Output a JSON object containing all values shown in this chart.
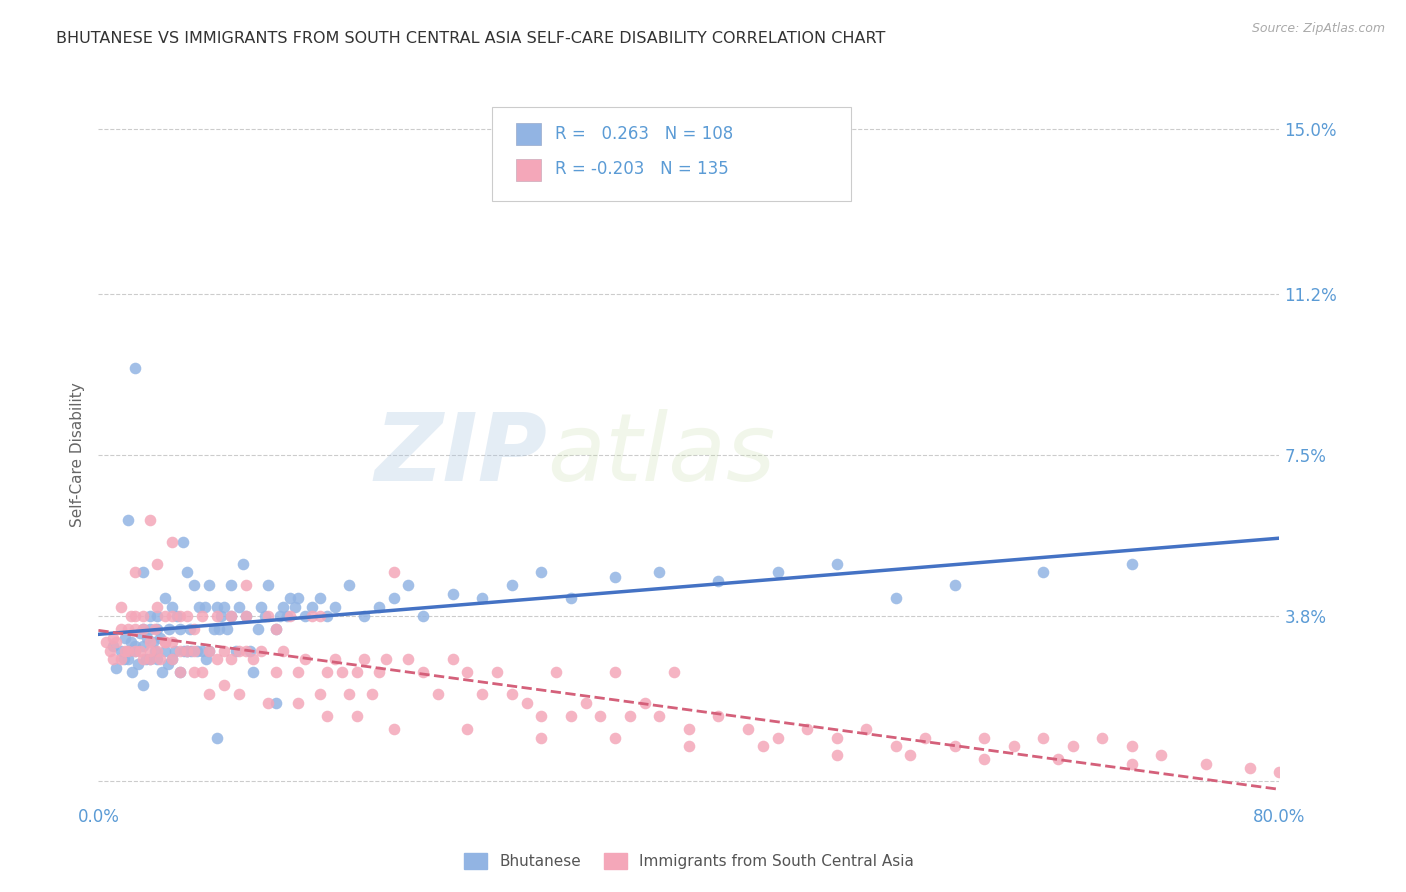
{
  "title": "BHUTANESE VS IMMIGRANTS FROM SOUTH CENTRAL ASIA SELF-CARE DISABILITY CORRELATION CHART",
  "source": "Source: ZipAtlas.com",
  "ylabel": "Self-Care Disability",
  "xlim": [
    0.0,
    0.8
  ],
  "ylim": [
    -0.005,
    0.155
  ],
  "yticks": [
    0.0,
    0.038,
    0.075,
    0.112,
    0.15
  ],
  "ytick_labels": [
    "",
    "3.8%",
    "7.5%",
    "11.2%",
    "15.0%"
  ],
  "xticks": [
    0.0,
    0.8
  ],
  "xtick_labels": [
    "0.0%",
    "80.0%"
  ],
  "blue_color": "#92b4e3",
  "blue_dark": "#4472c4",
  "pink_color": "#f4a7b9",
  "pink_dark": "#d4607a",
  "blue_R": "0.263",
  "blue_N": "108",
  "pink_R": "-0.203",
  "pink_N": "135",
  "watermark_zip": "ZIP",
  "watermark_atlas": "atlas",
  "legend1_label": "Bhutanese",
  "legend2_label": "Immigrants from South Central Asia",
  "blue_scatter_x": [
    0.01,
    0.012,
    0.015,
    0.017,
    0.018,
    0.02,
    0.02,
    0.022,
    0.023,
    0.025,
    0.025,
    0.027,
    0.028,
    0.03,
    0.03,
    0.03,
    0.032,
    0.033,
    0.035,
    0.035,
    0.037,
    0.038,
    0.04,
    0.04,
    0.042,
    0.043,
    0.045,
    0.045,
    0.047,
    0.048,
    0.05,
    0.05,
    0.052,
    0.053,
    0.055,
    0.055,
    0.057,
    0.058,
    0.06,
    0.06,
    0.062,
    0.063,
    0.065,
    0.067,
    0.068,
    0.07,
    0.072,
    0.073,
    0.075,
    0.075,
    0.078,
    0.08,
    0.082,
    0.083,
    0.085,
    0.087,
    0.09,
    0.09,
    0.093,
    0.095,
    0.098,
    0.1,
    0.103,
    0.105,
    0.108,
    0.11,
    0.113,
    0.115,
    0.12,
    0.123,
    0.125,
    0.128,
    0.13,
    0.133,
    0.135,
    0.14,
    0.145,
    0.15,
    0.155,
    0.16,
    0.17,
    0.18,
    0.19,
    0.2,
    0.21,
    0.22,
    0.24,
    0.26,
    0.28,
    0.3,
    0.32,
    0.35,
    0.38,
    0.42,
    0.46,
    0.5,
    0.54,
    0.58,
    0.64,
    0.7,
    0.02,
    0.025,
    0.03,
    0.035,
    0.04,
    0.06,
    0.08,
    0.12
  ],
  "blue_scatter_y": [
    0.031,
    0.026,
    0.03,
    0.028,
    0.033,
    0.03,
    0.028,
    0.032,
    0.025,
    0.031,
    0.03,
    0.027,
    0.034,
    0.031,
    0.035,
    0.022,
    0.028,
    0.033,
    0.038,
    0.028,
    0.032,
    0.03,
    0.038,
    0.028,
    0.033,
    0.025,
    0.03,
    0.042,
    0.027,
    0.035,
    0.028,
    0.04,
    0.03,
    0.038,
    0.025,
    0.035,
    0.055,
    0.03,
    0.03,
    0.048,
    0.035,
    0.03,
    0.045,
    0.03,
    0.04,
    0.03,
    0.04,
    0.028,
    0.03,
    0.045,
    0.035,
    0.04,
    0.035,
    0.038,
    0.04,
    0.035,
    0.038,
    0.045,
    0.03,
    0.04,
    0.05,
    0.038,
    0.03,
    0.025,
    0.035,
    0.04,
    0.038,
    0.045,
    0.035,
    0.038,
    0.04,
    0.038,
    0.042,
    0.04,
    0.042,
    0.038,
    0.04,
    0.042,
    0.038,
    0.04,
    0.045,
    0.038,
    0.04,
    0.042,
    0.045,
    0.038,
    0.043,
    0.042,
    0.045,
    0.048,
    0.042,
    0.047,
    0.048,
    0.046,
    0.048,
    0.05,
    0.042,
    0.045,
    0.048,
    0.05,
    0.06,
    0.095,
    0.048,
    0.035,
    0.035,
    0.03,
    0.01,
    0.018
  ],
  "pink_scatter_x": [
    0.005,
    0.008,
    0.01,
    0.01,
    0.012,
    0.015,
    0.015,
    0.018,
    0.02,
    0.02,
    0.022,
    0.025,
    0.025,
    0.025,
    0.028,
    0.03,
    0.03,
    0.03,
    0.035,
    0.035,
    0.035,
    0.038,
    0.04,
    0.04,
    0.04,
    0.042,
    0.045,
    0.045,
    0.05,
    0.05,
    0.05,
    0.055,
    0.055,
    0.06,
    0.06,
    0.065,
    0.065,
    0.07,
    0.07,
    0.075,
    0.08,
    0.08,
    0.085,
    0.09,
    0.09,
    0.095,
    0.1,
    0.1,
    0.105,
    0.11,
    0.115,
    0.12,
    0.12,
    0.125,
    0.13,
    0.135,
    0.14,
    0.145,
    0.15,
    0.155,
    0.16,
    0.165,
    0.17,
    0.175,
    0.18,
    0.185,
    0.19,
    0.195,
    0.2,
    0.21,
    0.22,
    0.23,
    0.24,
    0.25,
    0.26,
    0.27,
    0.28,
    0.29,
    0.3,
    0.31,
    0.32,
    0.33,
    0.34,
    0.35,
    0.36,
    0.37,
    0.38,
    0.39,
    0.4,
    0.42,
    0.44,
    0.46,
    0.48,
    0.5,
    0.52,
    0.54,
    0.56,
    0.58,
    0.6,
    0.62,
    0.64,
    0.66,
    0.68,
    0.7,
    0.72,
    0.015,
    0.025,
    0.035,
    0.045,
    0.055,
    0.065,
    0.075,
    0.085,
    0.095,
    0.115,
    0.135,
    0.155,
    0.175,
    0.2,
    0.25,
    0.3,
    0.35,
    0.4,
    0.45,
    0.5,
    0.55,
    0.6,
    0.65,
    0.7,
    0.75,
    0.78,
    0.8,
    0.05,
    0.1,
    0.15
  ],
  "pink_scatter_y": [
    0.032,
    0.03,
    0.033,
    0.028,
    0.032,
    0.028,
    0.035,
    0.03,
    0.035,
    0.03,
    0.038,
    0.038,
    0.03,
    0.048,
    0.03,
    0.038,
    0.035,
    0.028,
    0.032,
    0.028,
    0.06,
    0.035,
    0.04,
    0.03,
    0.05,
    0.028,
    0.038,
    0.032,
    0.032,
    0.038,
    0.028,
    0.03,
    0.038,
    0.038,
    0.03,
    0.03,
    0.035,
    0.025,
    0.038,
    0.03,
    0.028,
    0.038,
    0.03,
    0.028,
    0.038,
    0.03,
    0.03,
    0.038,
    0.028,
    0.03,
    0.038,
    0.035,
    0.025,
    0.03,
    0.038,
    0.025,
    0.028,
    0.038,
    0.02,
    0.025,
    0.028,
    0.025,
    0.02,
    0.025,
    0.028,
    0.02,
    0.025,
    0.028,
    0.048,
    0.028,
    0.025,
    0.02,
    0.028,
    0.025,
    0.02,
    0.025,
    0.02,
    0.018,
    0.015,
    0.025,
    0.015,
    0.018,
    0.015,
    0.025,
    0.015,
    0.018,
    0.015,
    0.025,
    0.012,
    0.015,
    0.012,
    0.01,
    0.012,
    0.01,
    0.012,
    0.008,
    0.01,
    0.008,
    0.01,
    0.008,
    0.01,
    0.008,
    0.01,
    0.008,
    0.006,
    0.04,
    0.035,
    0.03,
    0.032,
    0.025,
    0.025,
    0.02,
    0.022,
    0.02,
    0.018,
    0.018,
    0.015,
    0.015,
    0.012,
    0.012,
    0.01,
    0.01,
    0.008,
    0.008,
    0.006,
    0.006,
    0.005,
    0.005,
    0.004,
    0.004,
    0.003,
    0.002,
    0.055,
    0.045,
    0.038
  ],
  "grid_color": "#cccccc",
  "background_color": "#ffffff",
  "title_color": "#333333",
  "axis_color": "#5b9bd5"
}
